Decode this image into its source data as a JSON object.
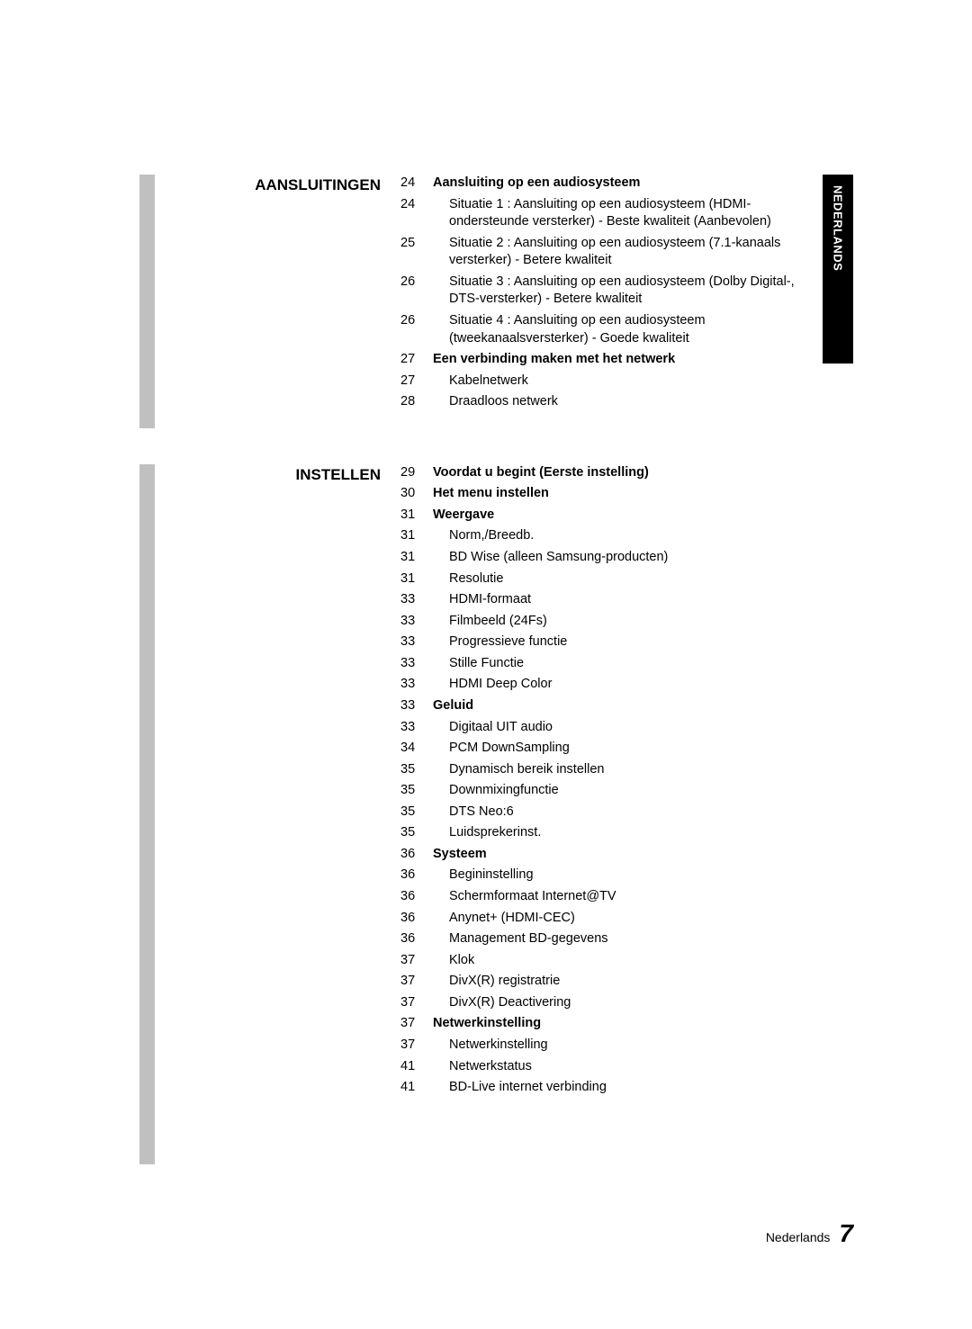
{
  "side_tab": {
    "text": "NEDERLANDS",
    "bg": "#000000",
    "fg": "#ffffff"
  },
  "sections": [
    {
      "title": "AANSLUITINGEN",
      "block_height": 282,
      "items": [
        {
          "page": "24",
          "text": "Aansluiting op een audiosysteem",
          "bold": true,
          "sub": false
        },
        {
          "page": "24",
          "text": "Situatie 1 : Aansluiting op een audiosysteem (HDMI-ondersteunde versterker) - Beste kwaliteit (Aanbevolen)",
          "bold": false,
          "sub": true
        },
        {
          "page": "25",
          "text": "Situatie 2 : Aansluiting op een audiosysteem (7.1-kanaals versterker) - Betere kwaliteit",
          "bold": false,
          "sub": true
        },
        {
          "page": "26",
          "text": "Situatie 3 : Aansluiting op een audiosysteem (Dolby Digital-, DTS-versterker) - Betere kwaliteit",
          "bold": false,
          "sub": true
        },
        {
          "page": "26",
          "text": "Situatie 4 : Aansluiting op een audiosysteem (tweekanaalsversterker) - Goede kwaliteit",
          "bold": false,
          "sub": true
        },
        {
          "page": "27",
          "text": "Een verbinding maken met het netwerk",
          "bold": true,
          "sub": false
        },
        {
          "page": "27",
          "text": "Kabelnetwerk",
          "bold": false,
          "sub": true
        },
        {
          "page": "28",
          "text": "Draadloos netwerk",
          "bold": false,
          "sub": true
        }
      ]
    },
    {
      "title": "INSTELLEN",
      "block_height": 778,
      "items": [
        {
          "page": "29",
          "text": "Voordat u begint (Eerste instelling)",
          "bold": true,
          "sub": false
        },
        {
          "page": "30",
          "text": "Het menu instellen",
          "bold": true,
          "sub": false
        },
        {
          "page": "31",
          "text": "Weergave",
          "bold": true,
          "sub": false
        },
        {
          "page": "31",
          "text": "Norm,/Breedb.",
          "bold": false,
          "sub": true
        },
        {
          "page": "31",
          "text": "BD Wise (alleen Samsung-producten)",
          "bold": false,
          "sub": true
        },
        {
          "page": "31",
          "text": "Resolutie",
          "bold": false,
          "sub": true
        },
        {
          "page": "33",
          "text": "HDMI-formaat",
          "bold": false,
          "sub": true
        },
        {
          "page": "33",
          "text": "Filmbeeld (24Fs)",
          "bold": false,
          "sub": true
        },
        {
          "page": "33",
          "text": "Progressieve functie",
          "bold": false,
          "sub": true
        },
        {
          "page": "33",
          "text": "Stille Functie",
          "bold": false,
          "sub": true
        },
        {
          "page": "33",
          "text": "HDMI Deep Color",
          "bold": false,
          "sub": true
        },
        {
          "page": "33",
          "text": "Geluid",
          "bold": true,
          "sub": false
        },
        {
          "page": "33",
          "text": "Digitaal UIT audio",
          "bold": false,
          "sub": true
        },
        {
          "page": "34",
          "text": "PCM DownSampling",
          "bold": false,
          "sub": true
        },
        {
          "page": "35",
          "text": "Dynamisch bereik instellen",
          "bold": false,
          "sub": true
        },
        {
          "page": "35",
          "text": "Downmixingfunctie",
          "bold": false,
          "sub": true
        },
        {
          "page": "35",
          "text": "DTS Neo:6",
          "bold": false,
          "sub": true
        },
        {
          "page": "35",
          "text": "Luidsprekerinst.",
          "bold": false,
          "sub": true
        },
        {
          "page": "36",
          "text": "Systeem",
          "bold": true,
          "sub": false
        },
        {
          "page": "36",
          "text": "Begininstelling",
          "bold": false,
          "sub": true
        },
        {
          "page": "36",
          "text": "Schermformaat Internet@TV",
          "bold": false,
          "sub": true
        },
        {
          "page": "36",
          "text": "Anynet+ (HDMI-CEC)",
          "bold": false,
          "sub": true
        },
        {
          "page": "36",
          "text": "Management BD-gegevens",
          "bold": false,
          "sub": true
        },
        {
          "page": "37",
          "text": "Klok",
          "bold": false,
          "sub": true
        },
        {
          "page": "37",
          "text": "DivX(R) registratrie",
          "bold": false,
          "sub": true
        },
        {
          "page": "37",
          "text": "DivX(R) Deactivering",
          "bold": false,
          "sub": true
        },
        {
          "page": "37",
          "text": "Netwerkinstelling",
          "bold": true,
          "sub": false
        },
        {
          "page": "37",
          "text": "Netwerkinstelling",
          "bold": false,
          "sub": true
        },
        {
          "page": "41",
          "text": "Netwerkstatus",
          "bold": false,
          "sub": true
        },
        {
          "page": "41",
          "text": "BD-Live internet verbinding",
          "bold": false,
          "sub": true
        }
      ]
    }
  ],
  "footer": {
    "label": "Nederlands",
    "number": "7"
  }
}
